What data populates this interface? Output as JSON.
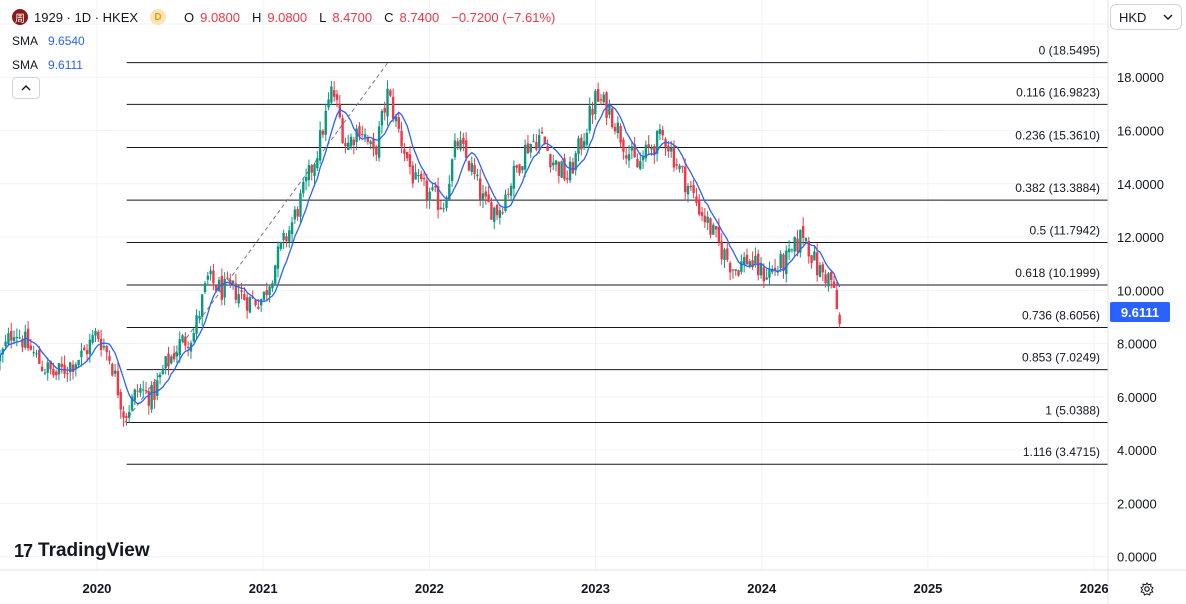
{
  "legend": {
    "symbol_logo": "周",
    "title": "1929 · 1D · HKEX",
    "d_badge": "D",
    "open_label": "O",
    "open": "9.0800",
    "high_label": "H",
    "high": "9.0800",
    "low_label": "L",
    "low": "8.4700",
    "close_label": "C",
    "close": "8.7400",
    "change": "−0.7200 (−7.61%)",
    "sma1_label": "SMA",
    "sma1_value": "9.6540",
    "sma2_label": "SMA",
    "sma2_value": "9.6111"
  },
  "currency": {
    "label": "HKD",
    "chevron": "⌄"
  },
  "last_price_tag": "9.6111",
  "branding": {
    "logo_mark": "17",
    "name": "TradingView"
  },
  "colors": {
    "up": "#089981",
    "down": "#f23645",
    "sma": "#2962ff",
    "accent": "#2962ff",
    "fib_line": "#131722"
  },
  "chart_data": {
    "type": "candlestick",
    "ylim": [
      -0.5,
      20.9
    ],
    "y_ticks": [
      20,
      18,
      16,
      14,
      12,
      10,
      8,
      6,
      4,
      2,
      0
    ],
    "y_tick_labels": [
      "20.0000",
      "18.0000",
      "16.0000",
      "14.0000",
      "12.0000",
      "10.0000",
      "8.0000",
      "6.0000",
      "4.0000",
      "2.0000",
      "0.0000"
    ],
    "x_ticks": [
      "2020",
      "2021",
      "2022",
      "2023",
      "2024",
      "2025",
      "2026"
    ],
    "x_range": [
      "2019-06",
      "2026-02"
    ],
    "fibonacci": [
      {
        "ratio": "0",
        "price": 18.5495,
        "label": "0 (18.5495)"
      },
      {
        "ratio": "0.116",
        "price": 16.9823,
        "label": "0.116 (16.9823)"
      },
      {
        "ratio": "0.236",
        "price": 15.361,
        "label": "0.236 (15.3610)"
      },
      {
        "ratio": "0.382",
        "price": 13.3884,
        "label": "0.382 (13.3884)"
      },
      {
        "ratio": "0.5",
        "price": 11.7942,
        "label": "0.5 (11.7942)"
      },
      {
        "ratio": "0.618",
        "price": 10.1999,
        "label": "0.618 (10.1999)"
      },
      {
        "ratio": "0.736",
        "price": 8.6056,
        "label": "0.736 (8.6056)"
      },
      {
        "ratio": "0.853",
        "price": 7.0249,
        "label": "0.853 (7.0249)"
      },
      {
        "ratio": "1",
        "price": 5.0388,
        "label": "1 (5.0388)"
      },
      {
        "ratio": "1.116",
        "price": 3.4715,
        "label": "1.116 (3.4715)"
      }
    ],
    "fib_trend": {
      "from": {
        "date": "2020-03",
        "price": 5.0388
      },
      "to": {
        "date": "2021-10",
        "price": 18.5495
      }
    },
    "price_path": [
      [
        "2019-06",
        7.4
      ],
      [
        "2019-07",
        8.6
      ],
      [
        "2019-08",
        7.9
      ],
      [
        "2019-09",
        7.2
      ],
      [
        "2019-10",
        6.8
      ],
      [
        "2019-11",
        7.2
      ],
      [
        "2019-12",
        7.6
      ],
      [
        "2020-01",
        8.4
      ],
      [
        "2020-02",
        7.4
      ],
      [
        "2020-03",
        5.3
      ],
      [
        "2020-04",
        6.3
      ],
      [
        "2020-05",
        6.0
      ],
      [
        "2020-06",
        7.2
      ],
      [
        "2020-07",
        8.0
      ],
      [
        "2020-08",
        8.4
      ],
      [
        "2020-09",
        10.4
      ],
      [
        "2020-10",
        10.0
      ],
      [
        "2020-11",
        10.0
      ],
      [
        "2020-12",
        9.6
      ],
      [
        "2021-01",
        9.7
      ],
      [
        "2021-02",
        11.2
      ],
      [
        "2021-03",
        12.4
      ],
      [
        "2021-04",
        13.8
      ],
      [
        "2021-05",
        15.4
      ],
      [
        "2021-06",
        17.6
      ],
      [
        "2021-07",
        15.4
      ],
      [
        "2021-08",
        16.2
      ],
      [
        "2021-09",
        15.0
      ],
      [
        "2021-10",
        17.4
      ],
      [
        "2021-11",
        15.6
      ],
      [
        "2021-12",
        14.0
      ],
      [
        "2022-01",
        13.6
      ],
      [
        "2022-02",
        13.2
      ],
      [
        "2022-03",
        15.6
      ],
      [
        "2022-04",
        14.6
      ],
      [
        "2022-05",
        13.2
      ],
      [
        "2022-06",
        13.0
      ],
      [
        "2022-07",
        14.2
      ],
      [
        "2022-08",
        15.4
      ],
      [
        "2022-09",
        15.8
      ],
      [
        "2022-10",
        14.8
      ],
      [
        "2022-11",
        14.2
      ],
      [
        "2022-12",
        15.6
      ],
      [
        "2023-01",
        17.2
      ],
      [
        "2023-02",
        16.8
      ],
      [
        "2023-03",
        15.6
      ],
      [
        "2023-04",
        14.6
      ],
      [
        "2023-05",
        15.4
      ],
      [
        "2023-06",
        15.8
      ],
      [
        "2023-07",
        14.6
      ],
      [
        "2023-08",
        13.6
      ],
      [
        "2023-09",
        12.6
      ],
      [
        "2023-10",
        11.6
      ],
      [
        "2023-11",
        10.8
      ],
      [
        "2023-12",
        11.2
      ],
      [
        "2024-01",
        10.6
      ],
      [
        "2024-02",
        10.8
      ],
      [
        "2024-03",
        11.2
      ],
      [
        "2024-04",
        12.2
      ],
      [
        "2024-05",
        10.8
      ],
      [
        "2024-06",
        10.4
      ],
      [
        "2024-06-20",
        8.74
      ]
    ],
    "last_candle": {
      "open": 9.08,
      "high": 9.08,
      "low": 8.47,
      "close": 8.74
    }
  }
}
